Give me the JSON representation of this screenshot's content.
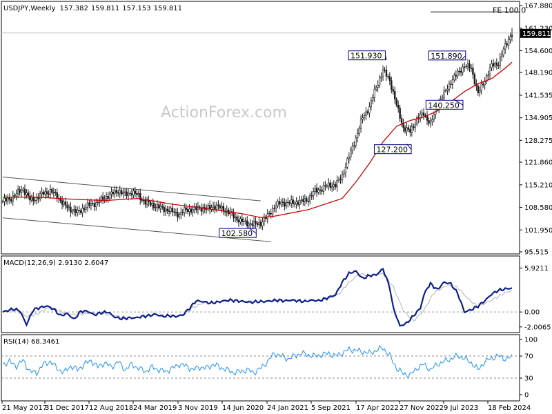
{
  "chart_data": {
    "type": "candlestick",
    "symbol_label": "USDJPY,Weekly",
    "ohlc": [
      "157.382",
      "159.811",
      "157.153",
      "159.811"
    ],
    "last_price_label": "159.811",
    "watermark": "ActionForex.com",
    "price_axis_ticks": [
      "167.880",
      "161.230",
      "154.600",
      "148.190",
      "141.535",
      "134.905",
      "128.275",
      "121.860",
      "115.210",
      "108.580",
      "101.950",
      "95.515"
    ],
    "price_ylim": [
      95.515,
      167.88
    ],
    "time_axis_labels": [
      "21 May 2017",
      "31 Dec 2017",
      "12 Aug 2018",
      "24 Mar 2019",
      "3 Nov 2019",
      "14 Jun 2020",
      "24 Jan 2021",
      "5 Sep 2021",
      "17 Apr 2022",
      "27 Nov 2022",
      "9 Jul 2023",
      "18 Feb 2024"
    ],
    "weekly_closes": [
      [
        0,
        110.3
      ],
      [
        4,
        111.0
      ],
      [
        8,
        112.5
      ],
      [
        12,
        114.0
      ],
      [
        16,
        110.8
      ],
      [
        20,
        111.3
      ],
      [
        24,
        112.8
      ],
      [
        28,
        113.3
      ],
      [
        32,
        112.0
      ],
      [
        36,
        109.3
      ],
      [
        40,
        108.0
      ],
      [
        44,
        107.0
      ],
      [
        48,
        108.5
      ],
      [
        52,
        109.5
      ],
      [
        56,
        110.0
      ],
      [
        60,
        111.5
      ],
      [
        64,
        112.5
      ],
      [
        68,
        113.5
      ],
      [
        72,
        112.3
      ],
      [
        76,
        113.0
      ],
      [
        80,
        112.0
      ],
      [
        84,
        110.0
      ],
      [
        88,
        109.5
      ],
      [
        92,
        108.5
      ],
      [
        96,
        108.0
      ],
      [
        100,
        107.3
      ],
      [
        104,
        106.5
      ],
      [
        108,
        108.0
      ],
      [
        112,
        107.8
      ],
      [
        116,
        108.5
      ],
      [
        120,
        108.0
      ],
      [
        124,
        109.0
      ],
      [
        128,
        108.5
      ],
      [
        132,
        107.5
      ],
      [
        136,
        106.0
      ],
      [
        140,
        104.5
      ],
      [
        144,
        104.0
      ],
      [
        148,
        103.6
      ],
      [
        152,
        104.0
      ],
      [
        156,
        106.0
      ],
      [
        160,
        108.8
      ],
      [
        164,
        110.0
      ],
      [
        168,
        109.8
      ],
      [
        172,
        110.0
      ],
      [
        176,
        110.3
      ],
      [
        180,
        111.0
      ],
      [
        184,
        113.5
      ],
      [
        188,
        114.0
      ],
      [
        192,
        115.2
      ],
      [
        196,
        115.0
      ],
      [
        200,
        118.0
      ],
      [
        204,
        123.5
      ],
      [
        208,
        129.0
      ],
      [
        212,
        135.0
      ],
      [
        216,
        138.0
      ],
      [
        220,
        144.0
      ],
      [
        224,
        148.8
      ],
      [
        228,
        146.0
      ],
      [
        232,
        138.5
      ],
      [
        236,
        132.0
      ],
      [
        240,
        130.8
      ],
      [
        244,
        134.5
      ],
      [
        248,
        136.2
      ],
      [
        252,
        133.0
      ],
      [
        256,
        138.5
      ],
      [
        260,
        141.9
      ],
      [
        264,
        145.5
      ],
      [
        268,
        148.0
      ],
      [
        272,
        150.2
      ],
      [
        276,
        149.5
      ],
      [
        280,
        142.0
      ],
      [
        284,
        146.0
      ],
      [
        288,
        150.2
      ],
      [
        292,
        151.0
      ],
      [
        296,
        156.0
      ],
      [
        300,
        159.8
      ]
    ],
    "ma_label": "",
    "ma_values": [
      [
        0,
        111.5
      ],
      [
        20,
        111.6
      ],
      [
        40,
        111.0
      ],
      [
        60,
        110.6
      ],
      [
        80,
        111.2
      ],
      [
        100,
        109.5
      ],
      [
        120,
        108.2
      ],
      [
        140,
        106.8
      ],
      [
        152,
        105.6
      ],
      [
        160,
        106.0
      ],
      [
        180,
        107.9
      ],
      [
        200,
        111.2
      ],
      [
        208,
        116.0
      ],
      [
        216,
        121.5
      ],
      [
        224,
        127.8
      ],
      [
        232,
        132.4
      ],
      [
        240,
        134.1
      ],
      [
        248,
        135.1
      ],
      [
        256,
        136.9
      ],
      [
        264,
        139.6
      ],
      [
        272,
        142.6
      ],
      [
        280,
        144.9
      ],
      [
        288,
        146.4
      ],
      [
        296,
        149.5
      ],
      [
        300,
        151.2
      ]
    ],
    "annotations": [
      {
        "label": "151.930",
        "x": 226,
        "y": 151.93
      },
      {
        "label": "151.890",
        "x": 270,
        "y": 151.89
      },
      {
        "label": "140.250",
        "x": 266,
        "y": 140.25
      },
      {
        "label": "127.200",
        "x": 238,
        "y": 127.2
      },
      {
        "label": "102.580",
        "x": 145,
        "y": 102.58
      },
      {
        "label": "FE 100.0",
        "x": 300,
        "y": 166.0
      }
    ],
    "channel": [
      {
        "upper": [
          [
            0,
            117.5
          ],
          [
            152,
            110.5
          ]
        ],
        "lower": [
          [
            0,
            105.5
          ],
          [
            158,
            98.5
          ]
        ]
      }
    ],
    "macd": {
      "label": "MACD(12,26,9) 2.9130 2.6047",
      "ticks": [
        "5.9211",
        "0.00",
        "-2.0065"
      ],
      "ylim": [
        -2.4,
        6.7
      ],
      "macd": [
        [
          0,
          0.0
        ],
        [
          6,
          0.4
        ],
        [
          10,
          0.2
        ],
        [
          14,
          -1.7
        ],
        [
          18,
          0.3
        ],
        [
          22,
          0.6
        ],
        [
          26,
          0.8
        ],
        [
          30,
          0.4
        ],
        [
          34,
          -0.5
        ],
        [
          38,
          -0.2
        ],
        [
          42,
          -1.0
        ],
        [
          46,
          0.1
        ],
        [
          50,
          0.1
        ],
        [
          54,
          -0.4
        ],
        [
          58,
          -0.1
        ],
        [
          62,
          0.0
        ],
        [
          66,
          -0.7
        ],
        [
          70,
          -0.9
        ],
        [
          74,
          -0.8
        ],
        [
          78,
          -0.8
        ],
        [
          82,
          -0.6
        ],
        [
          86,
          -0.5
        ],
        [
          90,
          -0.3
        ],
        [
          94,
          -0.6
        ],
        [
          98,
          -0.5
        ],
        [
          102,
          -0.6
        ],
        [
          106,
          -0.4
        ],
        [
          110,
          0.5
        ],
        [
          114,
          1.5
        ],
        [
          118,
          1.4
        ],
        [
          122,
          1.2
        ],
        [
          126,
          1.3
        ],
        [
          130,
          1.5
        ],
        [
          134,
          1.6
        ],
        [
          138,
          1.5
        ],
        [
          142,
          1.4
        ],
        [
          146,
          1.3
        ],
        [
          150,
          1.4
        ],
        [
          154,
          1.4
        ],
        [
          158,
          1.5
        ],
        [
          162,
          1.6
        ],
        [
          166,
          1.5
        ],
        [
          170,
          1.6
        ],
        [
          174,
          1.5
        ],
        [
          178,
          1.4
        ],
        [
          182,
          1.6
        ],
        [
          186,
          1.5
        ],
        [
          190,
          1.8
        ],
        [
          196,
          2.3
        ],
        [
          200,
          4.0
        ],
        [
          204,
          5.2
        ],
        [
          208,
          5.5
        ],
        [
          212,
          4.5
        ],
        [
          216,
          4.9
        ],
        [
          220,
          5.0
        ],
        [
          224,
          5.8
        ],
        [
          228,
          3.3
        ],
        [
          230,
          0.6
        ],
        [
          234,
          -1.9
        ],
        [
          238,
          -1.5
        ],
        [
          242,
          -0.5
        ],
        [
          246,
          0.5
        ],
        [
          248,
          2.2
        ],
        [
          250,
          3.2
        ],
        [
          252,
          3.8
        ],
        [
          256,
          3.0
        ],
        [
          260,
          4.0
        ],
        [
          264,
          3.8
        ],
        [
          268,
          2.5
        ],
        [
          272,
          0.0
        ],
        [
          276,
          0.3
        ],
        [
          280,
          0.8
        ],
        [
          284,
          1.5
        ],
        [
          288,
          2.4
        ],
        [
          292,
          2.9
        ],
        [
          296,
          3.1
        ],
        [
          300,
          3.2
        ]
      ],
      "signal": [
        [
          0,
          0.1
        ],
        [
          8,
          0.2
        ],
        [
          14,
          -0.6
        ],
        [
          20,
          -0.3
        ],
        [
          26,
          0.5
        ],
        [
          32,
          0.3
        ],
        [
          38,
          -0.3
        ],
        [
          44,
          -0.4
        ],
        [
          52,
          -0.1
        ],
        [
          58,
          -0.2
        ],
        [
          66,
          -0.5
        ],
        [
          74,
          -0.8
        ],
        [
          82,
          -0.7
        ],
        [
          90,
          -0.4
        ],
        [
          98,
          -0.5
        ],
        [
          106,
          -0.5
        ],
        [
          112,
          0.6
        ],
        [
          118,
          1.2
        ],
        [
          126,
          1.3
        ],
        [
          134,
          1.5
        ],
        [
          142,
          1.5
        ],
        [
          150,
          1.4
        ],
        [
          158,
          1.4
        ],
        [
          166,
          1.5
        ],
        [
          174,
          1.5
        ],
        [
          182,
          1.5
        ],
        [
          190,
          1.6
        ],
        [
          198,
          2.4
        ],
        [
          204,
          4.0
        ],
        [
          210,
          5.1
        ],
        [
          218,
          4.9
        ],
        [
          224,
          5.2
        ],
        [
          230,
          3.4
        ],
        [
          236,
          0.2
        ],
        [
          242,
          -1.2
        ],
        [
          248,
          0.2
        ],
        [
          254,
          2.6
        ],
        [
          262,
          3.6
        ],
        [
          268,
          3.3
        ],
        [
          274,
          1.8
        ],
        [
          280,
          0.7
        ],
        [
          288,
          1.6
        ],
        [
          296,
          2.6
        ],
        [
          300,
          2.9
        ]
      ]
    },
    "rsi": {
      "label": "RSI(14) 68.3461",
      "ticks": [
        "100",
        "70",
        "30",
        "0"
      ],
      "ylim": [
        0,
        100
      ],
      "levels": [
        70,
        30
      ],
      "values": [
        [
          0,
          55
        ],
        [
          4,
          60
        ],
        [
          8,
          52
        ],
        [
          12,
          62
        ],
        [
          16,
          42
        ],
        [
          20,
          40
        ],
        [
          24,
          55
        ],
        [
          28,
          60
        ],
        [
          32,
          48
        ],
        [
          36,
          40
        ],
        [
          40,
          52
        ],
        [
          44,
          45
        ],
        [
          48,
          55
        ],
        [
          52,
          62
        ],
        [
          56,
          50
        ],
        [
          60,
          58
        ],
        [
          64,
          50
        ],
        [
          68,
          60
        ],
        [
          72,
          45
        ],
        [
          76,
          55
        ],
        [
          80,
          48
        ],
        [
          84,
          42
        ],
        [
          88,
          50
        ],
        [
          92,
          45
        ],
        [
          96,
          42
        ],
        [
          100,
          48
        ],
        [
          104,
          55
        ],
        [
          108,
          52
        ],
        [
          112,
          45
        ],
        [
          116,
          50
        ],
        [
          120,
          48
        ],
        [
          124,
          55
        ],
        [
          128,
          50
        ],
        [
          132,
          45
        ],
        [
          136,
          40
        ],
        [
          140,
          42
        ],
        [
          144,
          45
        ],
        [
          148,
          40
        ],
        [
          152,
          48
        ],
        [
          156,
          60
        ],
        [
          160,
          75
        ],
        [
          164,
          70
        ],
        [
          168,
          65
        ],
        [
          172,
          70
        ],
        [
          176,
          75
        ],
        [
          180,
          72
        ],
        [
          184,
          70
        ],
        [
          188,
          72
        ],
        [
          192,
          75
        ],
        [
          196,
          70
        ],
        [
          200,
          75
        ],
        [
          204,
          82
        ],
        [
          208,
          80
        ],
        [
          212,
          78
        ],
        [
          216,
          75
        ],
        [
          220,
          80
        ],
        [
          224,
          85
        ],
        [
          228,
          70
        ],
        [
          232,
          48
        ],
        [
          236,
          38
        ],
        [
          240,
          35
        ],
        [
          244,
          48
        ],
        [
          248,
          55
        ],
        [
          252,
          45
        ],
        [
          256,
          55
        ],
        [
          260,
          60
        ],
        [
          264,
          65
        ],
        [
          268,
          70
        ],
        [
          272,
          66
        ],
        [
          276,
          58
        ],
        [
          280,
          45
        ],
        [
          284,
          60
        ],
        [
          288,
          66
        ],
        [
          292,
          70
        ],
        [
          296,
          65
        ],
        [
          300,
          68
        ]
      ]
    }
  },
  "colors": {
    "background": "#ffffff",
    "candle": "#1a1a1a",
    "ma": "#cc0000",
    "macd_line": "#0b1f8c",
    "signal_line": "#b4b4b4",
    "channel": "#555555",
    "last_price_tag_bg": "#000000",
    "annotation_border": "#000080"
  }
}
